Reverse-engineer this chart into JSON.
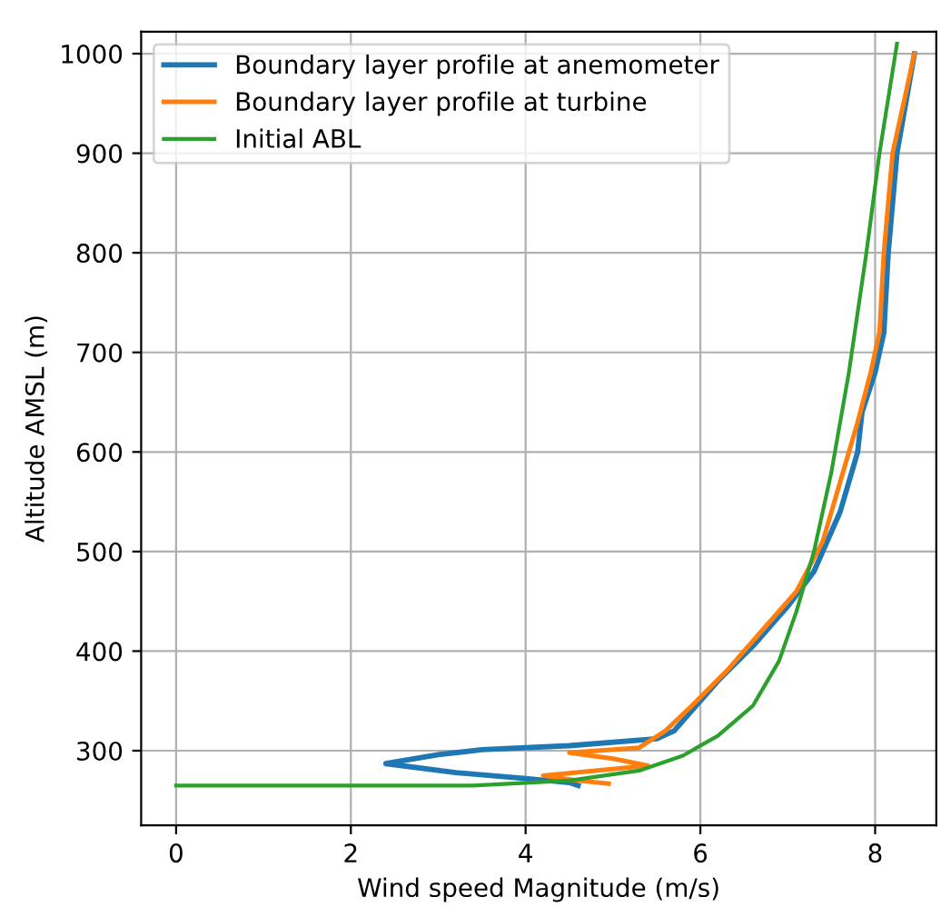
{
  "chart_data": {
    "type": "line",
    "xlabel": "Wind speed Magnitude (m/s)",
    "ylabel": "Altitude AMSL (m)",
    "xlim": [
      -0.4,
      8.7
    ],
    "ylim": [
      225,
      1022
    ],
    "xticks": [
      0,
      2,
      4,
      6,
      8
    ],
    "yticks": [
      300,
      400,
      500,
      600,
      700,
      800,
      900,
      1000
    ],
    "grid": true,
    "legend": "top left",
    "series": [
      {
        "name": "Boundary layer profile at anemometer",
        "color": "#1f77b4",
        "x": [
          4.6,
          4.5,
          4.0,
          3.2,
          2.4,
          3.0,
          3.5,
          4.5,
          5.5,
          5.7,
          5.9,
          6.2,
          6.6,
          7.0,
          7.3,
          7.6,
          7.8,
          7.85,
          8.0,
          8.1,
          8.15,
          8.25,
          8.45
        ],
        "values": [
          265,
          268,
          272,
          278,
          287,
          296,
          301,
          305,
          312,
          320,
          340,
          370,
          405,
          445,
          480,
          540,
          600,
          640,
          680,
          720,
          800,
          900,
          1000
        ]
      },
      {
        "name": "Boundary layer profile at turbine",
        "color": "#ff7f0e",
        "x": [
          4.95,
          4.6,
          4.2,
          4.8,
          5.4,
          5.0,
          4.5,
          5.3,
          5.6,
          5.9,
          6.3,
          6.7,
          7.1,
          7.4,
          7.6,
          7.8,
          7.95,
          8.05,
          8.1,
          8.2,
          8.45
        ],
        "values": [
          267,
          270,
          275,
          280,
          285,
          292,
          298,
          303,
          320,
          345,
          380,
          420,
          460,
          510,
          570,
          630,
          680,
          720,
          800,
          900,
          1000
        ]
      },
      {
        "name": "Initial ABL",
        "color": "#2ca02c",
        "x": [
          0,
          3.4,
          4.5,
          5.3,
          5.8,
          6.2,
          6.6,
          6.9,
          7.1,
          7.3,
          7.5,
          7.7,
          7.9,
          8.05,
          8.25
        ],
        "values": [
          265,
          265,
          270,
          280,
          295,
          315,
          345,
          390,
          440,
          500,
          580,
          680,
          800,
          900,
          1010
        ]
      }
    ]
  }
}
